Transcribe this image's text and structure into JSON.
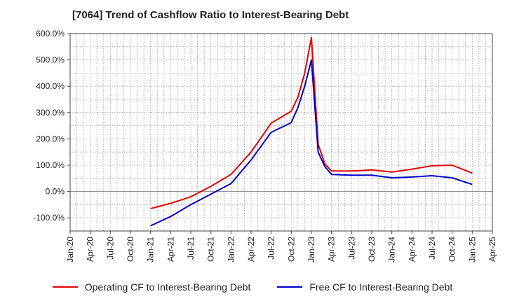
{
  "title": "[7064]  Trend of Cashflow Ratio to Interest-Bearing Debt",
  "chart_data": {
    "type": "line",
    "title": "[7064]  Trend of Cashflow Ratio to Interest-Bearing Debt",
    "xlabel": "",
    "ylabel": "",
    "ylim": [
      -150,
      600
    ],
    "y_ticks": [
      600,
      500,
      400,
      300,
      200,
      100,
      0,
      -100
    ],
    "y_tick_labels": [
      "600.0%",
      "500.0%",
      "400.0%",
      "300.0%",
      "200.0%",
      "100.0%",
      "0.0%",
      "-100.0%"
    ],
    "x_tick_labels": [
      "Jan-20",
      "Apr-20",
      "Jul-20",
      "Oct-20",
      "Jan-21",
      "Apr-21",
      "Jul-21",
      "Oct-21",
      "Jan-22",
      "Apr-22",
      "Jul-22",
      "Oct-22",
      "Jan-23",
      "Apr-23",
      "Jul-23",
      "Oct-23",
      "Jan-24",
      "Apr-24",
      "Jul-24",
      "Oct-24",
      "Jan-25",
      "Apr-25"
    ],
    "xlim": [
      "2020-01",
      "2025-04"
    ],
    "grid": true,
    "legend_position": "bottom",
    "series": [
      {
        "name": "Operating CF to Interest-Bearing Debt",
        "color": "#e60000",
        "points": [
          [
            "2021-01",
            -65
          ],
          [
            "2021-04",
            -45
          ],
          [
            "2021-07",
            -20
          ],
          [
            "2021-10",
            20
          ],
          [
            "2022-01",
            65
          ],
          [
            "2022-04",
            150
          ],
          [
            "2022-07",
            260
          ],
          [
            "2022-10",
            305
          ],
          [
            "2022-11",
            360
          ],
          [
            "2022-12",
            450
          ],
          [
            "2023-01",
            585
          ],
          [
            "2023-02",
            180
          ],
          [
            "2023-03",
            105
          ],
          [
            "2023-04",
            78
          ],
          [
            "2023-07",
            78
          ],
          [
            "2023-10",
            82
          ],
          [
            "2024-01",
            74
          ],
          [
            "2024-04",
            85
          ],
          [
            "2024-07",
            98
          ],
          [
            "2024-10",
            100
          ],
          [
            "2025-01",
            70
          ]
        ]
      },
      {
        "name": "Free CF to Interest-Bearing Debt",
        "color": "#0000cc",
        "points": [
          [
            "2021-01",
            -130
          ],
          [
            "2021-04",
            -95
          ],
          [
            "2021-07",
            -50
          ],
          [
            "2021-10",
            -10
          ],
          [
            "2022-01",
            30
          ],
          [
            "2022-04",
            120
          ],
          [
            "2022-07",
            225
          ],
          [
            "2022-10",
            262
          ],
          [
            "2022-11",
            320
          ],
          [
            "2022-12",
            400
          ],
          [
            "2023-01",
            500
          ],
          [
            "2023-02",
            150
          ],
          [
            "2023-03",
            95
          ],
          [
            "2023-04",
            65
          ],
          [
            "2023-07",
            62
          ],
          [
            "2023-10",
            62
          ],
          [
            "2024-01",
            52
          ],
          [
            "2024-04",
            55
          ],
          [
            "2024-07",
            60
          ],
          [
            "2024-10",
            52
          ],
          [
            "2025-01",
            27
          ]
        ]
      }
    ]
  }
}
